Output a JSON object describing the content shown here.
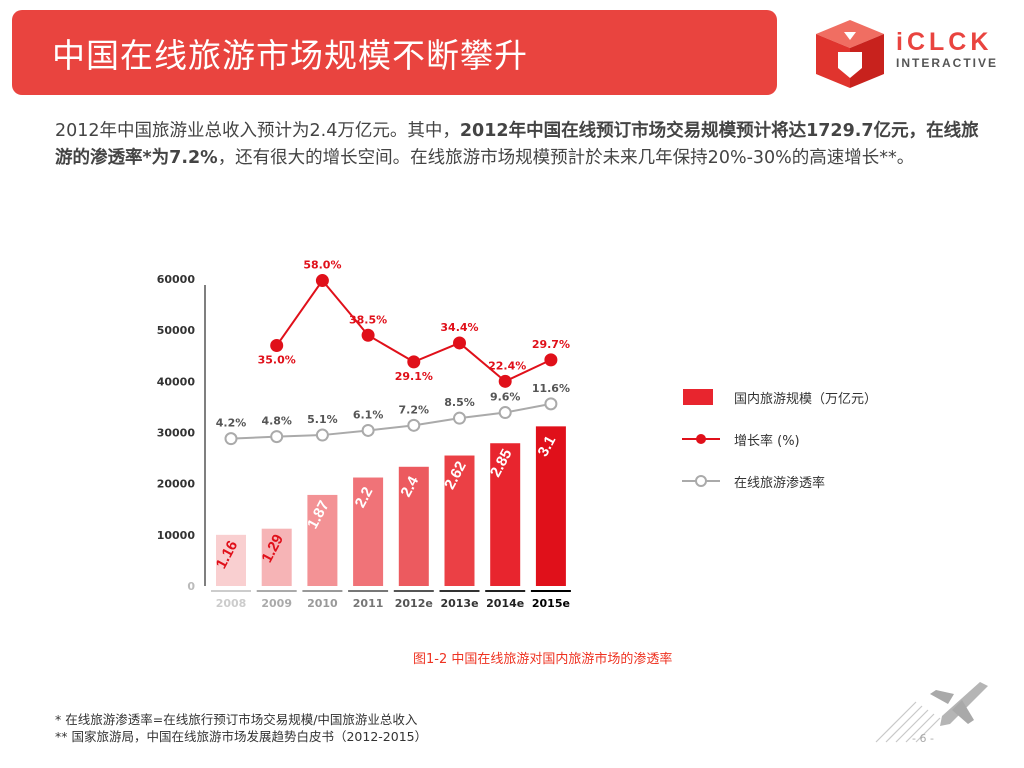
{
  "header": {
    "title": "中国在线旅游市场规模不断攀升",
    "logo_main": "iCLCK",
    "logo_sub": "INTERACTIVE",
    "brand_color": "#e9443f"
  },
  "intro": {
    "part1": "2012年中国旅游业总收入预计为2.4万亿元。其中，",
    "bold": "2012年中国在线预订市场交易规模预计将达1729.7亿元，在线旅游的渗透率*为7.2%",
    "part2": "，还有很大的增长空间。在线旅游市场规模预計於未来几年保持20%-30%的高速增长**。"
  },
  "chart_data": {
    "type": "bar",
    "categories": [
      "2008",
      "2009",
      "2010",
      "2011",
      "2012e",
      "2013e",
      "2014e",
      "2015e"
    ],
    "ylim": [
      0,
      60000
    ],
    "yticks": [
      "0",
      "10000",
      "20000",
      "30000",
      "40000",
      "50000",
      "60000"
    ],
    "series": [
      {
        "name": "国内旅游规模（万亿元）",
        "type": "bar",
        "values": [
          10000,
          11200,
          17800,
          21200,
          23300,
          25500,
          27900,
          31200
        ],
        "labels": [
          "1.16",
          "1.29",
          "1.87",
          "2.2",
          "2.4",
          "2.62",
          "2.85",
          "3.1"
        ],
        "colors": [
          "#f9cfd0",
          "#f6b4b6",
          "#f39295",
          "#f07378",
          "#ec5a5f",
          "#eb4045",
          "#e8252e",
          "#e0101a"
        ]
      },
      {
        "name": "增长率 (%)",
        "type": "line",
        "values": [
          null,
          47000,
          59700,
          49000,
          43800,
          47500,
          40000,
          44200
        ],
        "labels": [
          null,
          "35.0%",
          "58.0%",
          "38.5%",
          "29.1%",
          "34.4%",
          "22.4%",
          "29.7%"
        ],
        "color": "#e0101a"
      },
      {
        "name": "在线旅游渗透率",
        "type": "line",
        "values": [
          28800,
          29200,
          29500,
          30400,
          31400,
          32800,
          33900,
          35600
        ],
        "labels": [
          "4.2%",
          "4.8%",
          "5.1%",
          "6.1%",
          "7.2%",
          "8.5%",
          "9.6%",
          "11.6%"
        ],
        "color": "#aaaaaa"
      }
    ],
    "legend_position": "right"
  },
  "caption": "图1-2  中国在线旅游对国内旅游市场的渗透率",
  "footnotes": [
    "*  在线旅游渗透率=在线旅行预订市场交易规模/中国旅游业总收入",
    "**  国家旅游局，中国在线旅游市场发展趋势白皮书（2012-2015）"
  ],
  "page_number": "- 6 -"
}
